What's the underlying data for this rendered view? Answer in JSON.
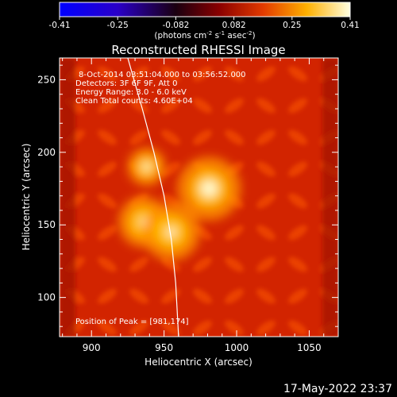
{
  "chart_data": {
    "type": "heatmap",
    "title": "Reconstructed RHESSI Image",
    "xlabel": "Heliocentric X (arcsec)",
    "ylabel": "Heliocentric Y (arcsec)",
    "xlim": [
      878,
      1070
    ],
    "ylim": [
      73,
      265
    ],
    "x_ticks": [
      900,
      950,
      1000,
      1050
    ],
    "y_ticks": [
      100,
      150,
      200,
      250
    ],
    "colorbar": {
      "ticks": [
        "-0.41",
        "-0.25",
        "-0.082",
        "0.082",
        "0.25",
        "0.41"
      ],
      "unit_prefix": "(photons cm",
      "unit_exp1": "-2",
      "unit_mid": " s",
      "unit_exp2": "-1",
      "unit_suffix": " asec",
      "unit_exp3": "-2",
      "unit_close": ")"
    },
    "info_lines": [
      "8-Oct-2014 03:51:04.000 to 03:56:52.000",
      "Detectors: 3F 6F 9F, Att 0",
      "Energy Range: 3.0 - 6.0 keV",
      "Clean     Total counts: 4.60E+04"
    ],
    "peak_label": "Position of Peak = [981,174]",
    "timestamp": "17-May-2022 23:37",
    "sources": [
      {
        "x": 981,
        "y": 175,
        "intensity": 1.0,
        "size": 10
      },
      {
        "x": 938,
        "y": 190,
        "intensity": 0.75,
        "size": 6
      },
      {
        "x": 936,
        "y": 152,
        "intensity": 0.55,
        "size": 8
      },
      {
        "x": 955,
        "y": 145,
        "intensity": 0.6,
        "size": 9
      }
    ],
    "limb_curve": [
      [
        925,
        265
      ],
      [
        935,
        230
      ],
      [
        943,
        200
      ],
      [
        950,
        170
      ],
      [
        955,
        140
      ],
      [
        958,
        110
      ],
      [
        960,
        73
      ]
    ],
    "colors": {
      "background": "#000000",
      "axis": "#ffffff",
      "limb": "#ffffff"
    }
  }
}
